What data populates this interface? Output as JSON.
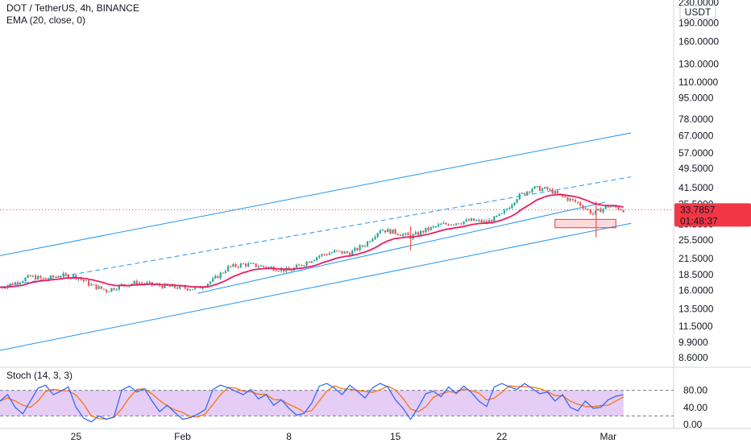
{
  "header": {
    "title": "DOT / TetherUS, 4h, BINANCE",
    "ema_label": "EMA (20, close, 0)",
    "currency": "USDT"
  },
  "price_badge": {
    "value": "33.7857",
    "countdown": "01:48:37",
    "color": "#f23645"
  },
  "stoch_label": "Stoch (14, 3, 3)",
  "chart_data": {
    "type": "candlestick",
    "scale": "log",
    "y_ticks": [
      "230.0000",
      "190.0000",
      "160.0000",
      "130.0000",
      "110.0000",
      "95.0000",
      "78.0000",
      "67.0000",
      "57.0000",
      "49.5000",
      "41.5000",
      "35.5000",
      "29.5000",
      "25.5000",
      "21.5000",
      "18.5000",
      "16.0000",
      "13.5000",
      "11.5000",
      "9.9000",
      "8.6000"
    ],
    "y_tick_values": [
      230,
      190,
      160,
      130,
      110,
      95,
      78,
      67,
      57,
      49.5,
      41.5,
      35.5,
      29.5,
      25.5,
      21.5,
      18.5,
      16,
      13.5,
      11.5,
      9.9,
      8.6
    ],
    "x_ticks": [
      "25",
      "Feb",
      "8",
      "15",
      "22",
      "Mar"
    ],
    "x_tick_days": [
      25,
      32,
      39,
      46,
      53,
      60
    ],
    "x_range_days": [
      20.0,
      64.3
    ],
    "daily_close": [
      [
        20.0,
        16.5
      ],
      [
        21.0,
        17.2
      ],
      [
        22.0,
        18.2
      ],
      [
        23.0,
        17.8
      ],
      [
        24.0,
        18.4
      ],
      [
        25.0,
        18.2
      ],
      [
        26.0,
        16.8
      ],
      [
        27.0,
        16.0
      ],
      [
        28.0,
        16.8
      ],
      [
        29.0,
        17.2
      ],
      [
        30.0,
        16.9
      ],
      [
        31.0,
        16.6
      ],
      [
        32.0,
        16.4
      ],
      [
        33.0,
        16.3
      ],
      [
        34.0,
        17.6
      ],
      [
        35.0,
        19.8
      ],
      [
        36.0,
        20.4
      ],
      [
        37.0,
        20.1
      ],
      [
        38.0,
        19.7
      ],
      [
        39.0,
        19.2
      ],
      [
        40.0,
        20.6
      ],
      [
        41.0,
        22.1
      ],
      [
        42.0,
        22.9
      ],
      [
        43.0,
        22.6
      ],
      [
        44.0,
        24.5
      ],
      [
        45.0,
        28.2
      ],
      [
        46.0,
        27.4
      ],
      [
        47.0,
        26.3
      ],
      [
        48.0,
        28.0
      ],
      [
        49.0,
        29.4
      ],
      [
        50.0,
        30.0
      ],
      [
        51.0,
        30.6
      ],
      [
        52.0,
        30.0
      ],
      [
        53.0,
        32.3
      ],
      [
        54.0,
        37.9
      ],
      [
        55.0,
        41.3
      ],
      [
        56.0,
        40.8
      ],
      [
        57.0,
        38.1
      ],
      [
        58.0,
        36.0
      ],
      [
        59.0,
        32.5
      ],
      [
        59.5,
        33.8
      ],
      [
        60.0,
        34.9
      ],
      [
        60.5,
        34.5
      ],
      [
        61.0,
        33.79
      ]
    ],
    "wicks": [
      [
        47.0,
        23.2,
        29.0
      ],
      [
        59.2,
        26.2,
        36.5
      ]
    ],
    "last_price": 33.7857,
    "ema_period": 20,
    "channels": [
      {
        "style": "solid",
        "points": [
          [
            20.0,
            22.1
          ],
          [
            61.5,
            68.8
          ]
        ]
      },
      {
        "style": "dashed",
        "points": [
          [
            20.0,
            16.5
          ],
          [
            61.5,
            45.8
          ]
        ]
      },
      {
        "style": "solid",
        "points": [
          [
            33.0,
            15.6
          ],
          [
            59.8,
            36.2
          ]
        ]
      },
      {
        "style": "solid",
        "points": [
          [
            20.0,
            9.2
          ],
          [
            61.5,
            29.8
          ]
        ]
      }
    ],
    "support_zone": {
      "x": [
        56.5,
        60.5
      ],
      "y": [
        28.6,
        30.9
      ]
    },
    "stoch": {
      "y_ticks": [
        "80.00",
        "40.00",
        "0.00"
      ],
      "y_tick_values": [
        80,
        40,
        0
      ],
      "band": [
        20,
        80
      ],
      "k": [
        [
          20.0,
          55
        ],
        [
          20.5,
          70
        ],
        [
          21.0,
          40
        ],
        [
          21.5,
          25
        ],
        [
          22.0,
          55
        ],
        [
          22.5,
          85
        ],
        [
          23.0,
          92
        ],
        [
          23.5,
          70
        ],
        [
          24.0,
          78
        ],
        [
          24.5,
          88
        ],
        [
          25.0,
          40
        ],
        [
          25.5,
          15
        ],
        [
          26.0,
          6
        ],
        [
          26.5,
          20
        ],
        [
          27.0,
          12
        ],
        [
          27.5,
          18
        ],
        [
          28.0,
          80
        ],
        [
          28.5,
          90
        ],
        [
          29.0,
          76
        ],
        [
          29.5,
          84
        ],
        [
          30.0,
          55
        ],
        [
          30.5,
          30
        ],
        [
          31.0,
          45
        ],
        [
          31.5,
          28
        ],
        [
          32.0,
          12
        ],
        [
          32.5,
          16
        ],
        [
          33.0,
          24
        ],
        [
          33.5,
          35
        ],
        [
          34.0,
          82
        ],
        [
          34.5,
          92
        ],
        [
          35.0,
          86
        ],
        [
          35.5,
          78
        ],
        [
          36.0,
          70
        ],
        [
          36.5,
          82
        ],
        [
          37.0,
          60
        ],
        [
          37.5,
          70
        ],
        [
          38.0,
          45
        ],
        [
          38.5,
          58
        ],
        [
          39.0,
          38
        ],
        [
          39.5,
          22
        ],
        [
          40.0,
          26
        ],
        [
          40.5,
          50
        ],
        [
          41.0,
          90
        ],
        [
          41.5,
          96
        ],
        [
          42.0,
          85
        ],
        [
          42.5,
          70
        ],
        [
          43.0,
          92
        ],
        [
          43.5,
          78
        ],
        [
          44.0,
          62
        ],
        [
          44.5,
          86
        ],
        [
          45.0,
          96
        ],
        [
          45.5,
          88
        ],
        [
          46.0,
          58
        ],
        [
          46.5,
          38
        ],
        [
          47.0,
          12
        ],
        [
          47.5,
          40
        ],
        [
          48.0,
          72
        ],
        [
          48.5,
          78
        ],
        [
          49.0,
          65
        ],
        [
          49.5,
          88
        ],
        [
          50.0,
          72
        ],
        [
          50.5,
          90
        ],
        [
          51.0,
          75
        ],
        [
          51.5,
          55
        ],
        [
          52.0,
          42
        ],
        [
          52.5,
          88
        ],
        [
          53.0,
          96
        ],
        [
          53.5,
          88
        ],
        [
          54.0,
          82
        ],
        [
          54.5,
          96
        ],
        [
          55.0,
          84
        ],
        [
          55.5,
          72
        ],
        [
          56.0,
          76
        ],
        [
          56.5,
          55
        ],
        [
          57.0,
          70
        ],
        [
          57.5,
          40
        ],
        [
          58.0,
          32
        ],
        [
          58.5,
          55
        ],
        [
          59.0,
          38
        ],
        [
          59.5,
          40
        ],
        [
          60.0,
          58
        ],
        [
          60.5,
          66
        ],
        [
          61.0,
          70
        ]
      ],
      "k_color": "#2962ff",
      "d_color": "#ff6d00"
    },
    "colors": {
      "up": "#26a69a",
      "down": "#ef5350",
      "ema": "#e91e63",
      "channel": "#2196f3",
      "zone": "#f23645",
      "band_fill": "#e1c4f5"
    }
  }
}
